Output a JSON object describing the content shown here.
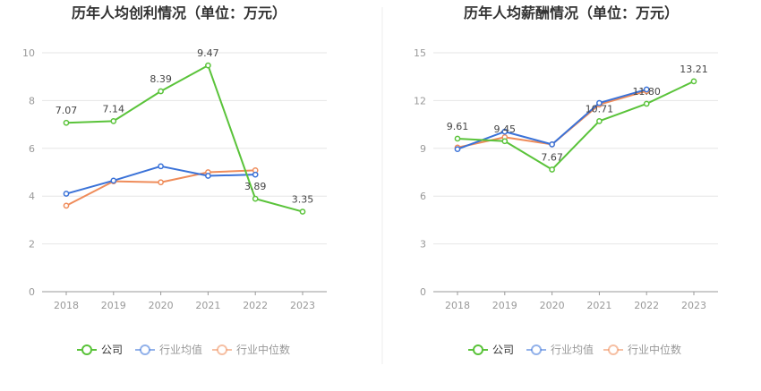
{
  "chart_data": [
    {
      "type": "line",
      "title": "历年人均创利情况（单位：万元）",
      "categories": [
        "2018",
        "2019",
        "2020",
        "2021",
        "2022",
        "2023"
      ],
      "ylim": [
        0,
        10
      ],
      "yticks": [
        "0",
        "2",
        "4",
        "6",
        "8",
        "10"
      ],
      "grid": true,
      "legend_position": "bottom",
      "series": [
        {
          "name": "公司",
          "color": "#5ac33a",
          "values": [
            7.07,
            7.14,
            8.39,
            9.47,
            3.89,
            3.35
          ],
          "labels": [
            "7.07",
            "7.14",
            "8.39",
            "9.47",
            "3.89",
            "3.35"
          ]
        },
        {
          "name": "行业均值",
          "color": "#3a72d8",
          "values": [
            4.1,
            4.65,
            5.25,
            4.85,
            4.9,
            null
          ]
        },
        {
          "name": "行业中位数",
          "color": "#ef8c5a",
          "values": [
            3.6,
            4.62,
            4.58,
            5.0,
            5.08,
            null
          ]
        }
      ]
    },
    {
      "type": "line",
      "title": "历年人均薪酬情况（单位：万元）",
      "categories": [
        "2018",
        "2019",
        "2020",
        "2021",
        "2022",
        "2023"
      ],
      "ylim": [
        0,
        15
      ],
      "yticks": [
        "0",
        "3",
        "6",
        "9",
        "12",
        "15"
      ],
      "grid": true,
      "legend_position": "bottom",
      "series": [
        {
          "name": "公司",
          "color": "#5ac33a",
          "values": [
            9.61,
            9.45,
            7.67,
            10.71,
            11.8,
            13.21
          ],
          "labels": [
            "9.61",
            "9.45",
            "7.67",
            "10.71",
            "11.80",
            "13.21"
          ]
        },
        {
          "name": "行业均值",
          "color": "#3a72d8",
          "values": [
            8.95,
            10.05,
            9.25,
            11.85,
            12.7,
            null
          ]
        },
        {
          "name": "行业中位数",
          "color": "#ef8c5a",
          "values": [
            9.05,
            9.7,
            9.25,
            11.75,
            12.6,
            null
          ]
        }
      ]
    }
  ]
}
